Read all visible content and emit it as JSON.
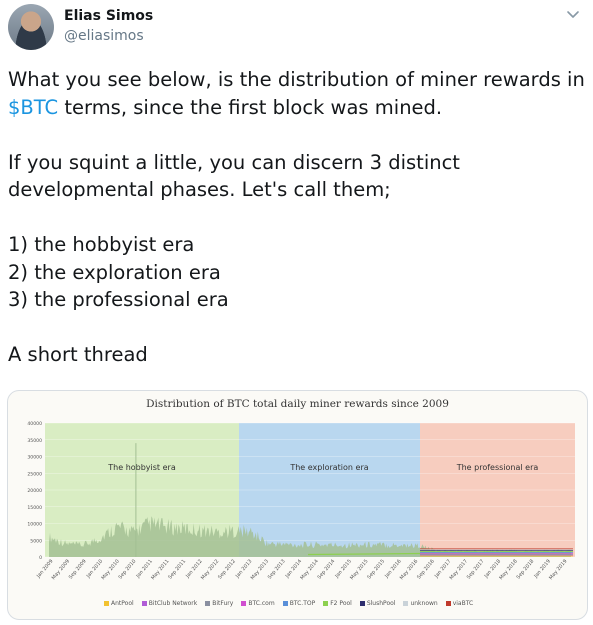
{
  "tweet": {
    "author_name": "Elias Simos",
    "author_handle": "@eliasimos",
    "line1_before": "What you see below, is the distribution of miner rewards in ",
    "cashtag": "$BTC",
    "line1_after": " terms, since the first block was mined.",
    "para2": "If you squint a little, you can discern 3 distinct developmental phases. Let's call them;",
    "list": [
      "1) the hobbyist era",
      "2) the exploration era",
      "3) the professional era"
    ],
    "closing": "A short thread",
    "icons": {
      "avatar": "avatar-photo",
      "menu": "chevron-down-icon"
    },
    "colors": {
      "cashtag": "#1b95e0",
      "handle": "#657786"
    }
  },
  "chart_data": {
    "type": "area",
    "title": "Distribution of BTC total daily miner rewards since 2009",
    "ylim": [
      0,
      40000
    ],
    "y_ticks": [
      "0",
      "5000",
      "10000",
      "15000",
      "20000",
      "25000",
      "30000",
      "35000",
      "40000"
    ],
    "x_tick_labels": [
      "Jan 2009",
      "May 2009",
      "Sep 2009",
      "Jan 2010",
      "May 2010",
      "Sep 2010",
      "Jan 2011",
      "May 2011",
      "Sep 2011",
      "Jan 2012",
      "May 2012",
      "Sep 2012",
      "Jan 2013",
      "May 2013",
      "Sep 2013",
      "Jan 2014",
      "May 2014",
      "Sep 2014",
      "Jan 2015",
      "May 2015",
      "Sep 2015",
      "Jan 2016",
      "May 2016",
      "Sep 2016",
      "Jan 2017",
      "May 2017",
      "Sep 2017",
      "Jan 2018",
      "May 2018",
      "Sep 2018",
      "Jan 2019",
      "May 2019"
    ],
    "eras": [
      {
        "label": "The hobbyist era",
        "color": "#d9edc3"
      },
      {
        "label": "The exploration era",
        "color": "#b9d7ef"
      },
      {
        "label": "The professional era",
        "color": "#f7cdbf"
      }
    ],
    "series_total": {
      "x": [
        "Jan 2009",
        "May 2009",
        "Sep 2009",
        "Jan 2010",
        "May 2010",
        "Sep 2010",
        "Jan 2011",
        "May 2011",
        "Sep 2011",
        "Jan 2012",
        "May 2012",
        "Sep 2012",
        "Jan 2013",
        "May 2013",
        "Sep 2013",
        "Jan 2014",
        "May 2014",
        "Sep 2014",
        "Jan 2015",
        "May 2015",
        "Sep 2015",
        "Jan 2016",
        "May 2016",
        "Sep 2016",
        "Jan 2017",
        "May 2017",
        "Sep 2017",
        "Jan 2018",
        "May 2018",
        "Sep 2018",
        "Jan 2019",
        "May 2019"
      ],
      "values": [
        6000,
        4000,
        3500,
        5500,
        9000,
        7500,
        10000,
        9000,
        8500,
        8000,
        7500,
        7800,
        7500,
        4000,
        3800,
        3600,
        3700,
        3600,
        3600,
        3700,
        3600,
        3600,
        3400,
        1800,
        1900,
        1800,
        1900,
        2000,
        1800,
        1800,
        1900,
        1850
      ]
    },
    "spike": {
      "x": "Sep 2010",
      "value": 34000
    },
    "legend": [
      {
        "name": "AntPool",
        "color": "#f2c230"
      },
      {
        "name": "BitClub Network",
        "color": "#b05cd6"
      },
      {
        "name": "BitFury",
        "color": "#8a8fa0"
      },
      {
        "name": "BTC.com",
        "color": "#d04fd0"
      },
      {
        "name": "BTC.TOP",
        "color": "#5a8fd8"
      },
      {
        "name": "F2 Pool",
        "color": "#8dd04f"
      },
      {
        "name": "SlushPool",
        "color": "#2e2e6e"
      },
      {
        "name": "unknown",
        "color": "#c9d2d8"
      },
      {
        "name": "viaBTC",
        "color": "#c0392b"
      }
    ]
  }
}
